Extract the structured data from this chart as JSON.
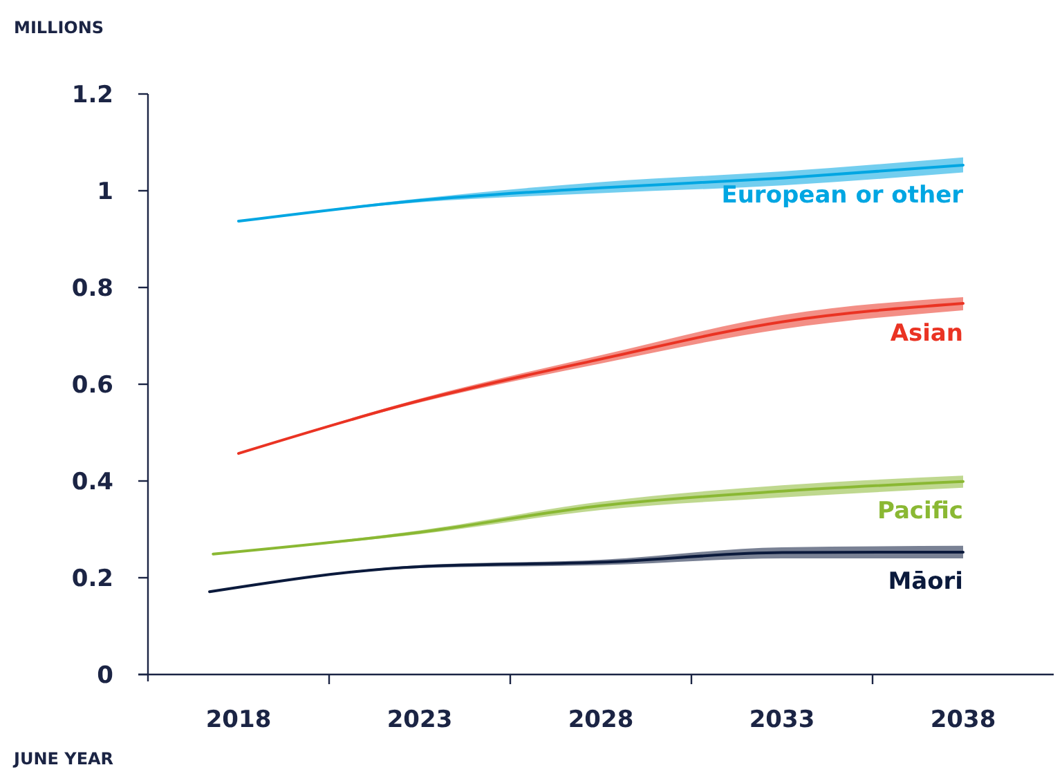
{
  "chart_data": {
    "type": "line",
    "xlabel": "JUNE YEAR",
    "ylabel": "MILLIONS",
    "xlim": [
      2015.5,
      2040.5
    ],
    "ylim": [
      0,
      1.2
    ],
    "xticks": [
      2018,
      {
        "value": 2020.5,
        "label": null
      },
      2023,
      {
        "value": 2025.5,
        "label": null
      },
      2028,
      {
        "value": 2030.5,
        "label": null
      },
      2033,
      {
        "value": 2035.5,
        "label": null
      },
      2038
    ],
    "yticks": [
      0,
      0.2,
      0.4,
      0.6,
      0.8,
      1,
      1.2
    ],
    "grid": false,
    "series": [
      {
        "name": "European or other",
        "color": "#00a6e2",
        "x": [
          2018,
          2023,
          2028,
          2033,
          2038
        ],
        "values": [
          0.937,
          0.98,
          1.006,
          1.026,
          1.053
        ],
        "lower": [
          0.937,
          0.976,
          0.995,
          1.011,
          1.038
        ],
        "upper": [
          0.937,
          0.984,
          1.018,
          1.04,
          1.069
        ]
      },
      {
        "name": "Asian",
        "color": "#ea3323",
        "x": [
          2018,
          2023,
          2028,
          2033,
          2038
        ],
        "values": [
          0.457,
          0.566,
          0.652,
          0.729,
          0.767
        ],
        "lower": [
          0.457,
          0.562,
          0.643,
          0.714,
          0.753
        ],
        "upper": [
          0.457,
          0.57,
          0.66,
          0.743,
          0.78
        ]
      },
      {
        "name": "Pacific",
        "color": "#8ab833",
        "x": [
          2017.3,
          2023,
          2028,
          2033,
          2038
        ],
        "values": [
          0.249,
          0.294,
          0.349,
          0.379,
          0.399
        ],
        "lower": [
          0.249,
          0.29,
          0.34,
          0.366,
          0.386
        ],
        "upper": [
          0.249,
          0.298,
          0.357,
          0.391,
          0.411
        ]
      },
      {
        "name": "Māori",
        "color": "#0b1a3c",
        "x": [
          2017.2,
          2023,
          2028,
          2033,
          2038
        ],
        "values": [
          0.171,
          0.223,
          0.232,
          0.252,
          0.253
        ],
        "lower": [
          0.171,
          0.22,
          0.226,
          0.24,
          0.24
        ],
        "upper": [
          0.171,
          0.226,
          0.237,
          0.263,
          0.266
        ]
      }
    ]
  }
}
